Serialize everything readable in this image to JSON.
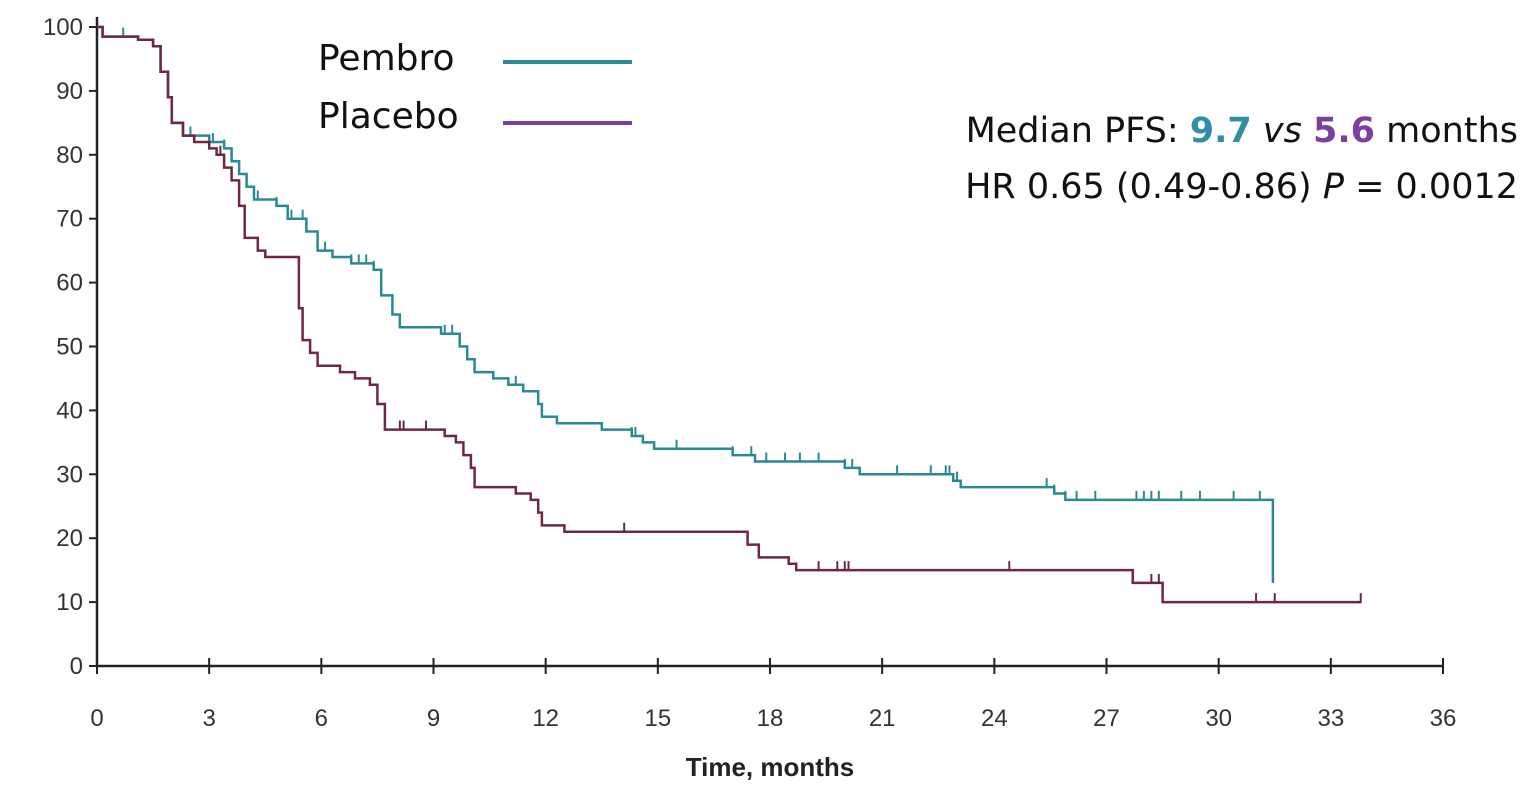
{
  "colors": {
    "pembro": "#2a8a91",
    "placebo": "#6e2a3a",
    "pembro_text": "#2f8fa6",
    "placebo_text": "#7b3fa0",
    "axis": "#222222"
  },
  "annotation": {
    "line1_prefix": "Median PFS: ",
    "pembro_median": "9.7",
    "vs": "vs",
    "placebo_median": "5.6",
    "line1_suffix": " months",
    "line2_prefix": "HR 0.65 (0.49-0.86) ",
    "p_label": "P",
    "line2_suffix": " = 0.0012"
  },
  "chart_data": {
    "type": "line",
    "title": "",
    "xlabel": "Time, months",
    "ylabel": "",
    "xlim": [
      0,
      36
    ],
    "ylim": [
      0,
      100
    ],
    "xticks": [
      0,
      3,
      6,
      9,
      12,
      15,
      18,
      21,
      24,
      27,
      30,
      33,
      36
    ],
    "yticks": [
      0,
      10,
      20,
      30,
      40,
      50,
      60,
      70,
      80,
      90,
      100
    ],
    "legend_position": "top-left",
    "series": [
      {
        "name": "Pembro",
        "color": "#2a8a91",
        "steps": [
          [
            0,
            100
          ],
          [
            0.15,
            98.5
          ],
          [
            1.1,
            98
          ],
          [
            1.5,
            97
          ],
          [
            1.7,
            93
          ],
          [
            1.9,
            89
          ],
          [
            2.0,
            85
          ],
          [
            2.3,
            83
          ],
          [
            2.6,
            83
          ],
          [
            3.0,
            82
          ],
          [
            3.4,
            81
          ],
          [
            3.6,
            79
          ],
          [
            3.8,
            77
          ],
          [
            4.0,
            75
          ],
          [
            4.2,
            73
          ],
          [
            4.8,
            72
          ],
          [
            5.1,
            70
          ],
          [
            5.6,
            68
          ],
          [
            5.9,
            65
          ],
          [
            6.3,
            64
          ],
          [
            6.8,
            63
          ],
          [
            7.4,
            62
          ],
          [
            7.6,
            58
          ],
          [
            7.9,
            55
          ],
          [
            8.1,
            53
          ],
          [
            9.2,
            52
          ],
          [
            9.7,
            50
          ],
          [
            9.9,
            48
          ],
          [
            10.1,
            46
          ],
          [
            10.6,
            45
          ],
          [
            11.0,
            44
          ],
          [
            11.4,
            43
          ],
          [
            11.8,
            41
          ],
          [
            11.9,
            39
          ],
          [
            12.3,
            38
          ],
          [
            13.5,
            37
          ],
          [
            14.3,
            36
          ],
          [
            14.6,
            35
          ],
          [
            14.9,
            34
          ],
          [
            17.0,
            33
          ],
          [
            17.6,
            32
          ],
          [
            18.4,
            32
          ],
          [
            20.0,
            31
          ],
          [
            20.4,
            30
          ],
          [
            22.9,
            29
          ],
          [
            23.1,
            28
          ],
          [
            25.6,
            27
          ],
          [
            25.9,
            26
          ],
          [
            31.3,
            26
          ],
          [
            31.45,
            13
          ]
        ],
        "censor_x": [
          0.7,
          2.5,
          3.1,
          3.4,
          3.6,
          4.3,
          4.8,
          5.2,
          5.5,
          6.1,
          6.8,
          7.0,
          7.2,
          7.4,
          9.3,
          9.5,
          11.2,
          14.3,
          14.4,
          15.5,
          17.0,
          17.5,
          17.9,
          18.4,
          18.8,
          19.3,
          20.0,
          20.2,
          21.4,
          22.3,
          22.7,
          22.8,
          23.0,
          25.4,
          25.6,
          25.9,
          26.2,
          26.7,
          27.8,
          28.0,
          28.2,
          28.4,
          29.0,
          29.5,
          30.4,
          31.1
        ],
        "end_x": 31.45
      },
      {
        "name": "Placebo",
        "color": "#6e2a3a",
        "steps": [
          [
            0,
            100
          ],
          [
            0.15,
            98.5
          ],
          [
            1.1,
            98
          ],
          [
            1.5,
            97
          ],
          [
            1.7,
            93
          ],
          [
            1.9,
            89
          ],
          [
            2.0,
            85
          ],
          [
            2.3,
            83
          ],
          [
            2.6,
            82
          ],
          [
            3.0,
            81
          ],
          [
            3.2,
            80
          ],
          [
            3.4,
            78
          ],
          [
            3.6,
            76
          ],
          [
            3.8,
            72
          ],
          [
            3.95,
            67
          ],
          [
            4.3,
            65
          ],
          [
            4.5,
            64
          ],
          [
            5.3,
            64
          ],
          [
            5.4,
            56
          ],
          [
            5.5,
            51
          ],
          [
            5.7,
            49
          ],
          [
            5.9,
            47
          ],
          [
            6.1,
            47
          ],
          [
            6.5,
            46
          ],
          [
            6.9,
            45
          ],
          [
            7.3,
            44
          ],
          [
            7.5,
            41
          ],
          [
            7.7,
            37
          ],
          [
            8.2,
            37
          ],
          [
            8.8,
            37
          ],
          [
            9.3,
            36
          ],
          [
            9.6,
            35
          ],
          [
            9.8,
            33
          ],
          [
            10.0,
            31
          ],
          [
            10.1,
            28
          ],
          [
            10.8,
            28
          ],
          [
            11.2,
            27
          ],
          [
            11.6,
            26
          ],
          [
            11.8,
            24
          ],
          [
            11.9,
            22
          ],
          [
            12.2,
            22
          ],
          [
            12.5,
            21
          ],
          [
            14.5,
            21
          ],
          [
            17.3,
            21
          ],
          [
            17.4,
            19
          ],
          [
            17.7,
            17
          ],
          [
            18.5,
            16
          ],
          [
            18.7,
            15
          ],
          [
            27.6,
            15
          ],
          [
            27.7,
            13
          ],
          [
            28.4,
            13
          ],
          [
            28.5,
            10
          ],
          [
            33.8,
            10
          ]
        ],
        "censor_x": [
          3.3,
          8.1,
          8.2,
          8.8,
          14.1,
          19.3,
          19.8,
          20.0,
          20.1,
          24.4,
          28.2,
          28.4,
          31.0,
          31.5,
          33.8
        ],
        "end_x": 33.8
      }
    ]
  }
}
